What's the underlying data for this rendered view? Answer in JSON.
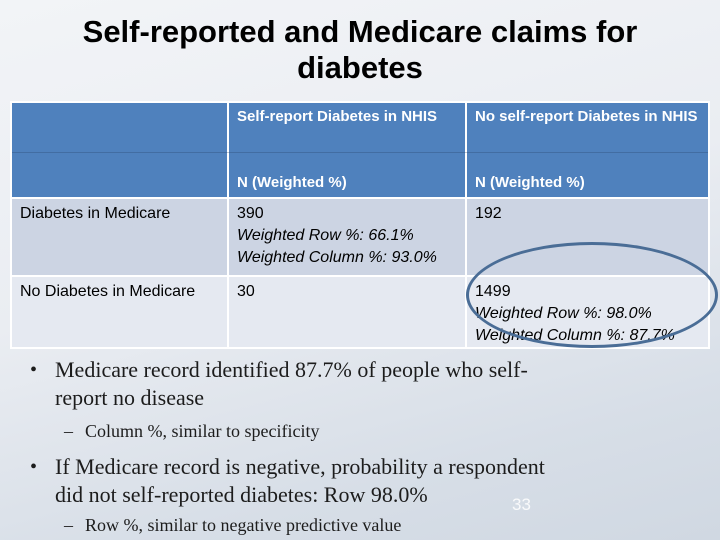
{
  "slide": {
    "title": "Self-reported and Medicare claims for diabetes",
    "page_number": "33"
  },
  "table": {
    "col_headers": [
      {
        "title": "Self-report Diabetes in NHIS",
        "sub": "N (Weighted %)"
      },
      {
        "title": "No self-report Diabetes in NHIS",
        "sub": "N (Weighted %)"
      }
    ],
    "rows": [
      {
        "label": "Diabetes in Medicare",
        "cells": [
          {
            "n": "390",
            "row_pct": "Weighted Row %: 66.1%",
            "col_pct": "Weighted Column %: 93.0%"
          },
          {
            "n": "192"
          }
        ]
      },
      {
        "label": "No Diabetes in Medicare",
        "cells": [
          {
            "n": "30"
          },
          {
            "n": "1499",
            "row_pct": "Weighted Row %: 98.0%",
            "col_pct": "Weighted Column %: 87.7%"
          }
        ]
      }
    ]
  },
  "bullets": [
    {
      "lines": [
        "Medicare record identified 87.7% of people who self-",
        "report no disease"
      ],
      "sub": "Column %, similar to specificity"
    },
    {
      "lines": [
        "If Medicare record is negative, probability a respondent",
        "did not self-reported diabetes: Row 98.0%"
      ],
      "sub": "Row %, similar to negative predictive value"
    }
  ],
  "glyphs": {
    "bullet": "•",
    "dash": "–"
  },
  "annotation": {
    "shape": "ellipse",
    "color": "#4A6D96"
  },
  "colors": {
    "header_bg": "#4F81BD",
    "header_text": "#FFFFFF",
    "row_band_dark": "#CCD4E3",
    "row_band_light": "#E5E9F1",
    "grid_line": "#FFFFFF",
    "title_text": "#000000",
    "body_text": "#1C1C1C"
  }
}
